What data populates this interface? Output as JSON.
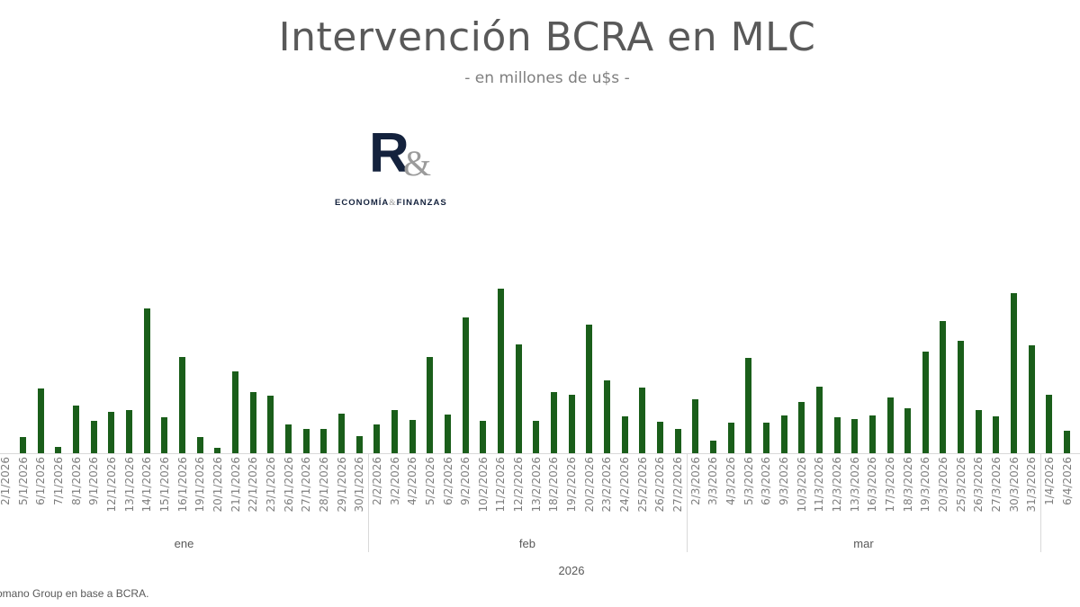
{
  "header": {
    "title": "Intervención BCRA en MLC",
    "subtitle": "- en millones de u$s -"
  },
  "logo": {
    "mark_letter": "R",
    "mark_amp": "&",
    "tagline_left": "ECONOMÍA",
    "tagline_amp": "&",
    "tagline_right": "FINANZAS"
  },
  "footer": {
    "source": "omano Group en base a BCRA."
  },
  "colors": {
    "bar": "#1a5e1a",
    "text": "#595959",
    "axis": "#d9d9d9"
  },
  "chart_data": {
    "type": "bar",
    "title": "Intervención BCRA en MLC",
    "subtitle": "- en millones de u$s -",
    "xlabel": "2026",
    "ylabel": "",
    "units": "relative bar height (px, no y-axis shown)",
    "grid": false,
    "legend": null,
    "categories": [
      "2/1/2026",
      "5/1/2026",
      "6/1/2026",
      "7/1/2026",
      "8/1/2026",
      "9/1/2026",
      "12/1/2026",
      "13/1/2026",
      "14/1/2026",
      "15/1/2026",
      "16/1/2026",
      "19/1/2026",
      "20/1/2026",
      "21/1/2026",
      "22/1/2026",
      "23/1/2026",
      "26/1/2026",
      "27/1/2026",
      "28/1/2026",
      "29/1/2026",
      "30/1/2026",
      "2/2/2026",
      "3/2/2026",
      "4/2/2026",
      "5/2/2026",
      "6/2/2026",
      "9/2/2026",
      "10/2/2026",
      "11/2/2026",
      "12/2/2026",
      "13/2/2026",
      "18/2/2026",
      "19/2/2026",
      "20/2/2026",
      "23/2/2026",
      "24/2/2026",
      "25/2/2026",
      "26/2/2026",
      "27/2/2026",
      "2/3/2026",
      "3/3/2026",
      "4/3/2026",
      "5/3/2026",
      "6/3/2026",
      "9/3/2026",
      "10/3/2026",
      "11/3/2026",
      "12/3/2026",
      "13/3/2026",
      "16/3/2026",
      "17/3/2026",
      "18/3/2026",
      "19/3/2026",
      "20/3/2026",
      "25/3/2026",
      "26/3/2026",
      "27/3/2026",
      "30/3/2026",
      "31/3/2026",
      "1/4/2026",
      "6/4/2026"
    ],
    "values": [
      0,
      18,
      72,
      7,
      53,
      36,
      46,
      48,
      161,
      40,
      107,
      18,
      6,
      91,
      68,
      64,
      32,
      27,
      27,
      44,
      19,
      32,
      48,
      37,
      107,
      43,
      151,
      36,
      183,
      121,
      36,
      68,
      65,
      143,
      81,
      41,
      73,
      35,
      27,
      60,
      14,
      34,
      106,
      34,
      42,
      57,
      74,
      40,
      38,
      42,
      62,
      50,
      113,
      147,
      125,
      48,
      41,
      178,
      120,
      65,
      25
    ],
    "month_groups": [
      {
        "label": "ene",
        "start": 0,
        "end": 20
      },
      {
        "label": "feb",
        "start": 21,
        "end": 38
      },
      {
        "label": "mar",
        "start": 39,
        "end": 58
      },
      {
        "label": "",
        "start": 59,
        "end": 60
      }
    ],
    "year_label": "2026"
  }
}
